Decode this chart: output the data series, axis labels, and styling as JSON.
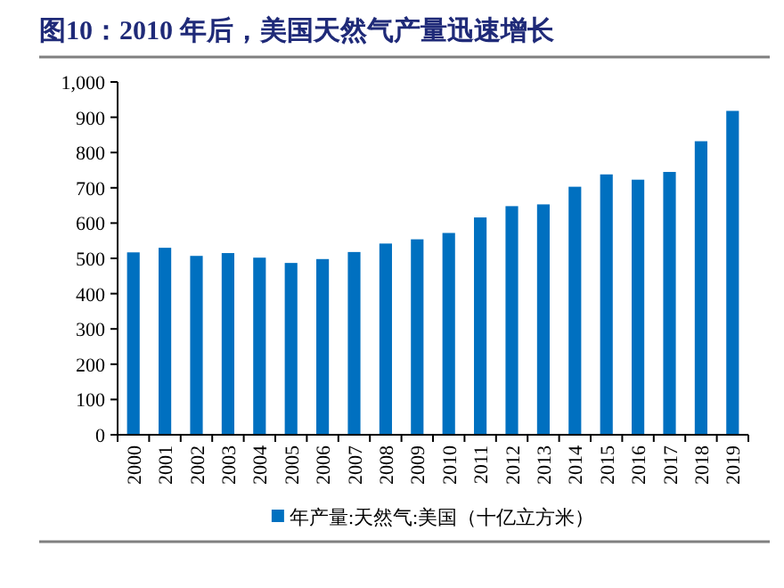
{
  "chart_data": {
    "type": "bar",
    "title": "图10：2010 年后，美国天然气产量迅速增长",
    "categories": [
      "2000",
      "2001",
      "2002",
      "2003",
      "2004",
      "2005",
      "2006",
      "2007",
      "2008",
      "2009",
      "2010",
      "2011",
      "2012",
      "2013",
      "2014",
      "2015",
      "2016",
      "2017",
      "2018",
      "2019"
    ],
    "series": [
      {
        "name": "年产量:天然气:美国（十亿立方米）",
        "color": "#0070c0",
        "values": [
          517,
          530,
          507,
          515,
          502,
          487,
          498,
          518,
          542,
          554,
          572,
          616,
          648,
          653,
          703,
          738,
          723,
          745,
          832,
          918
        ]
      }
    ],
    "ylim": [
      0,
      1000
    ],
    "yticks": [
      0,
      100,
      200,
      300,
      400,
      500,
      600,
      700,
      800,
      900,
      {
        "value": 1000,
        "label": "1,000"
      }
    ],
    "legend": "bottom",
    "grid": false
  }
}
